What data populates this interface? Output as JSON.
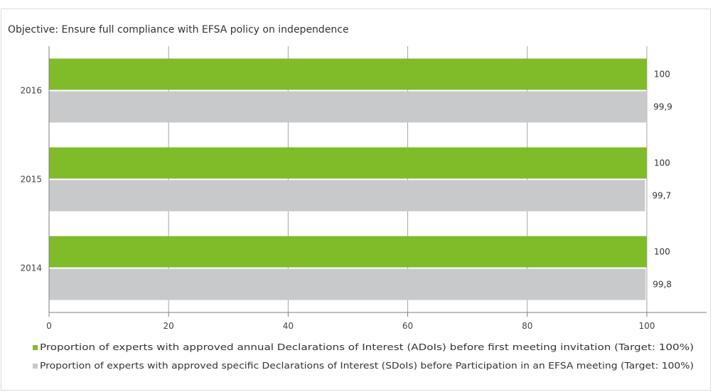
{
  "chart_data": {
    "type": "bar",
    "orientation": "horizontal",
    "title": "Objective: Ensure full compliance with EFSA policy on independence",
    "categories": [
      "2016",
      "2015",
      "2014"
    ],
    "series": [
      {
        "name": "Proportion of experts with approved annual Declarations of Interest (ADoIs) before first meeting invitation (Target: 100%)",
        "values": [
          100,
          100,
          100
        ],
        "labels": [
          "100",
          "100",
          "100"
        ],
        "color": "#80bb2a"
      },
      {
        "name": "Proportion of experts with approved specific Declarations of Interest (SDoIs) before Participation in an EFSA meeting (Target: 100%)",
        "values": [
          99.9,
          99.7,
          99.8
        ],
        "labels": [
          "99,9",
          "99,7",
          "99,8"
        ],
        "color": "#c8c9cb"
      }
    ],
    "xlim": [
      0,
      110
    ],
    "xticks": [
      0,
      20,
      40,
      60,
      80,
      100
    ],
    "xtick_labels": [
      "0",
      "20",
      "40",
      "60",
      "80",
      "100"
    ],
    "grid": true,
    "legend_position": "bottom",
    "xlabel": "",
    "ylabel": ""
  }
}
